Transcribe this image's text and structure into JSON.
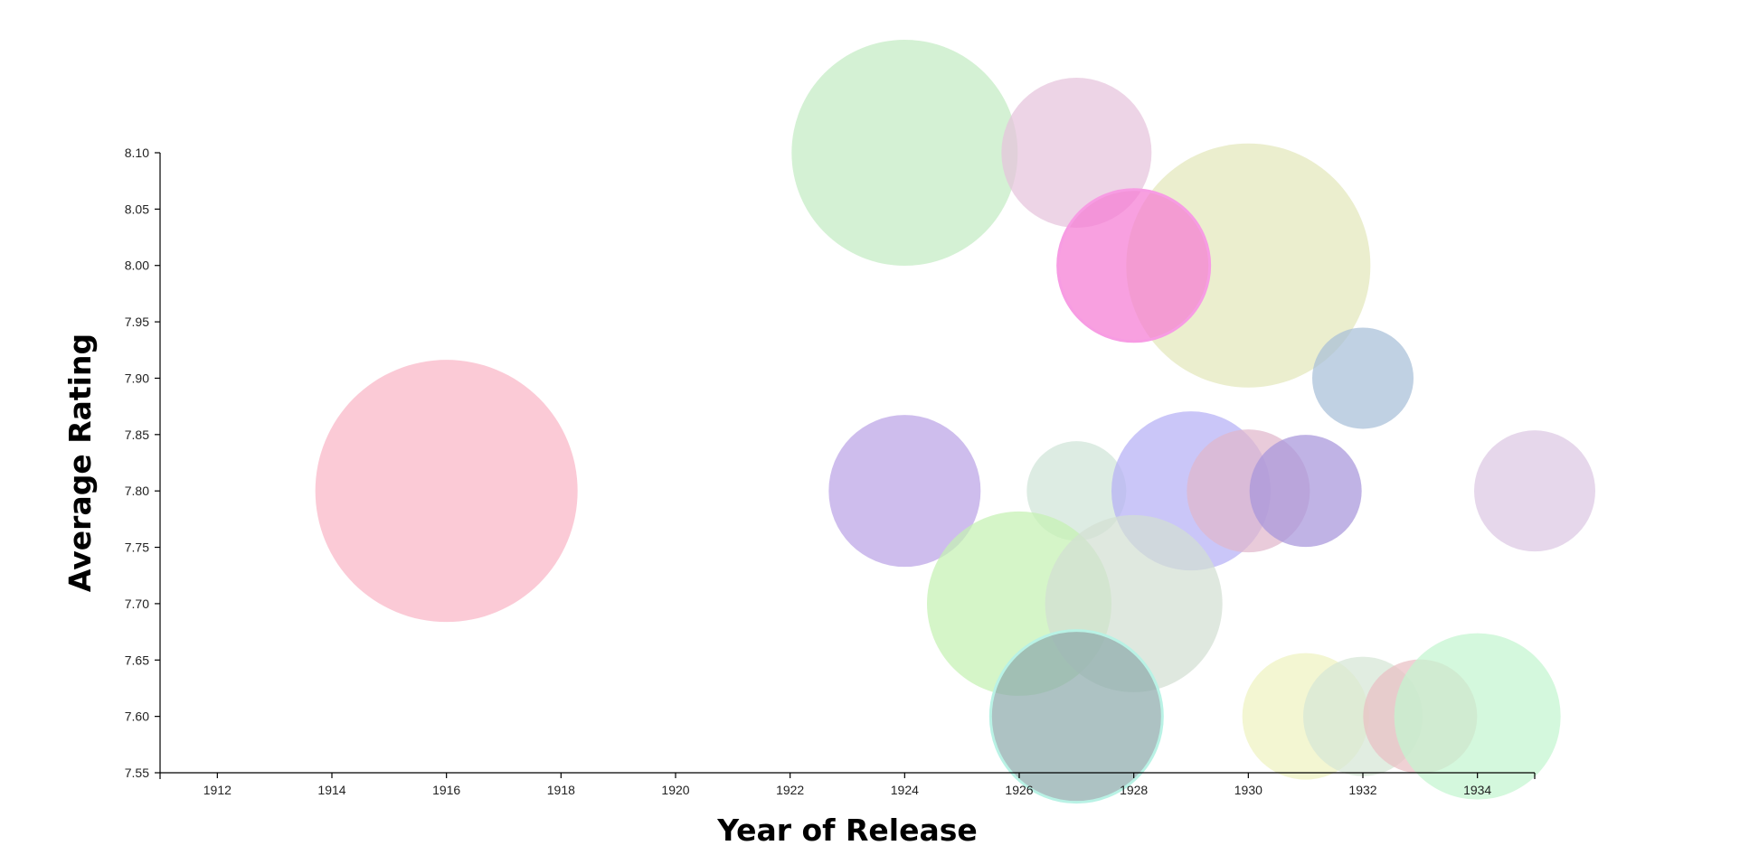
{
  "chart_data": {
    "type": "scatter",
    "title": "",
    "xlabel": "Year of Release",
    "ylabel": "Average Rating",
    "xlim": [
      1911,
      1935
    ],
    "ylim": [
      7.55,
      8.1
    ],
    "x_ticks": [
      "1912",
      "1914",
      "1916",
      "1918",
      "1920",
      "1922",
      "1924",
      "1926",
      "1928",
      "1930",
      "1932",
      "1934"
    ],
    "y_ticks": [
      "7.55",
      "7.60",
      "7.65",
      "7.70",
      "7.75",
      "7.80",
      "7.85",
      "7.90",
      "7.95",
      "8.00",
      "8.05",
      "8.10"
    ],
    "grid": false,
    "legend": "none",
    "points": [
      {
        "x": 1916,
        "y": 7.8,
        "size": 145,
        "color": "#f9b6c6"
      },
      {
        "x": 1924,
        "y": 8.1,
        "size": 125,
        "color": "#c3ebc3"
      },
      {
        "x": 1927,
        "y": 8.1,
        "size": 83,
        "color": "#e6c3dd"
      },
      {
        "x": 1930,
        "y": 8.0,
        "size": 135,
        "color": "#e3e7bb"
      },
      {
        "x": 1928,
        "y": 8.0,
        "size": 84,
        "color": "#f57bd4",
        "stroke": "#f79ce3"
      },
      {
        "x": 1932,
        "y": 7.9,
        "size": 56,
        "color": "#a7bfd8"
      },
      {
        "x": 1924,
        "y": 7.8,
        "size": 84,
        "color": "#bba3e6"
      },
      {
        "x": 1927,
        "y": 7.8,
        "size": 55,
        "color": "#d0e5d8"
      },
      {
        "x": 1929,
        "y": 7.8,
        "size": 88,
        "color": "#b6b0f5"
      },
      {
        "x": 1930,
        "y": 7.8,
        "size": 68,
        "color": "#e0b7cc"
      },
      {
        "x": 1931,
        "y": 7.8,
        "size": 62,
        "color": "#a896db"
      },
      {
        "x": 1935,
        "y": 7.8,
        "size": 67,
        "color": "#dcc7e3"
      },
      {
        "x": 1926,
        "y": 7.7,
        "size": 102,
        "color": "#c5f1b3"
      },
      {
        "x": 1928,
        "y": 7.7,
        "size": 98,
        "color": "#d3dfd3"
      },
      {
        "x": 1927,
        "y": 7.6,
        "size": 95,
        "color": "#8eaaac",
        "stroke": "#b9f2e5"
      },
      {
        "x": 1931,
        "y": 7.6,
        "size": 70,
        "color": "#eef3c0"
      },
      {
        "x": 1932,
        "y": 7.6,
        "size": 66,
        "color": "#d6e6d6"
      },
      {
        "x": 1933,
        "y": 7.6,
        "size": 63,
        "color": "#e9bfc3"
      },
      {
        "x": 1934,
        "y": 7.6,
        "size": 92,
        "color": "#c3f5d0"
      }
    ]
  }
}
